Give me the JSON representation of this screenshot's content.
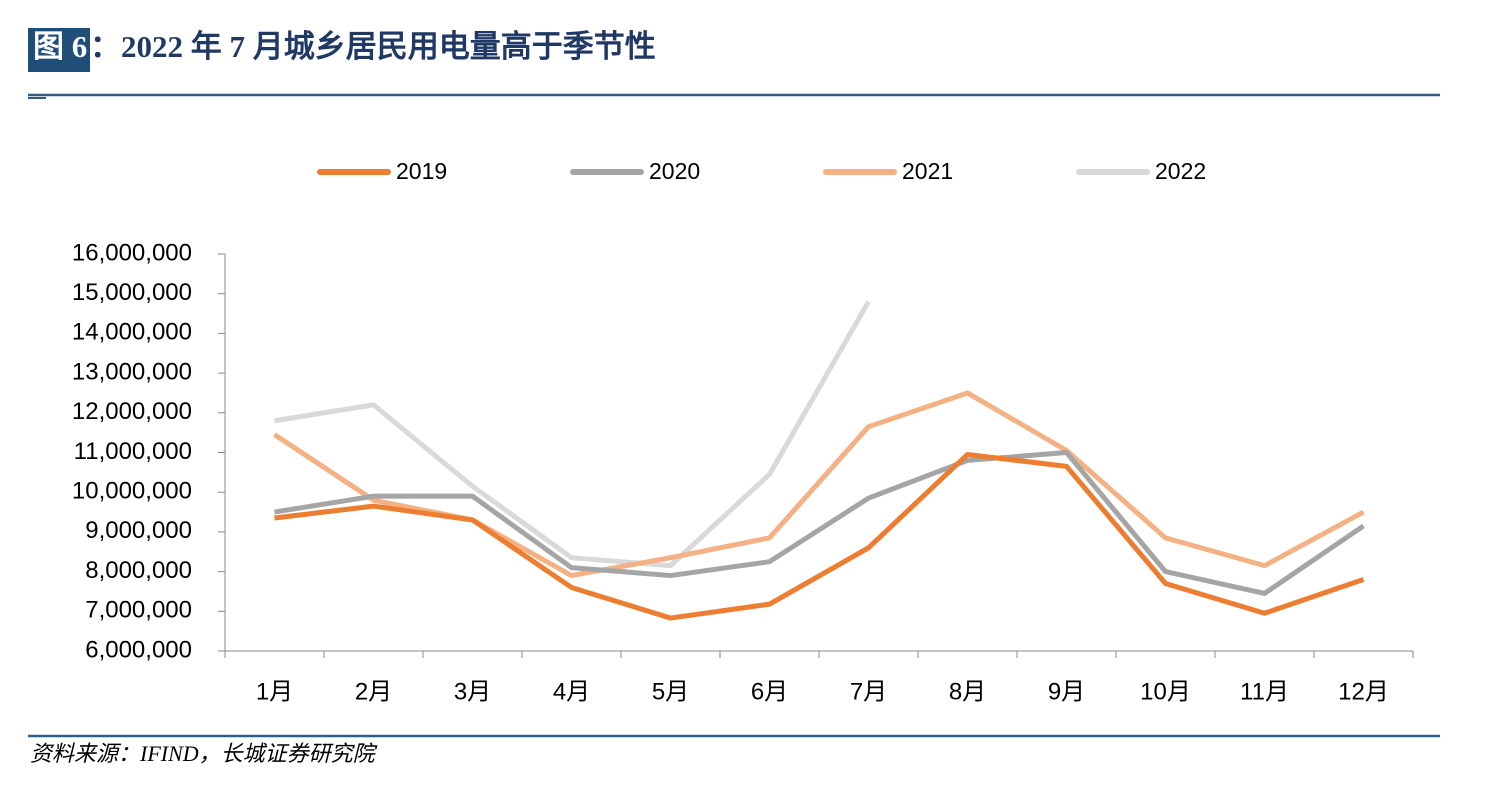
{
  "figure_label": "图 6",
  "source": "资料来源：IFIND，长城证券研究院",
  "chart_data": {
    "type": "line",
    "title": "：2022 年 7 月城乡居民用电量高于季节性",
    "categories": [
      "1月",
      "2月",
      "3月",
      "4月",
      "5月",
      "6月",
      "7月",
      "8月",
      "9月",
      "10月",
      "11月",
      "12月"
    ],
    "series": [
      {
        "name": "2019",
        "color": "#ed7d31",
        "values": [
          9350000,
          9650000,
          9300000,
          7600000,
          6830000,
          7180000,
          8600000,
          10950000,
          10650000,
          7700000,
          6950000,
          7800000
        ]
      },
      {
        "name": "2020",
        "color": "#a5a5a5",
        "values": [
          9500000,
          9900000,
          9900000,
          8100000,
          7900000,
          8250000,
          9850000,
          10800000,
          11000000,
          8000000,
          7450000,
          9150000
        ]
      },
      {
        "name": "2021",
        "color": "#f4b183",
        "values": [
          11450000,
          9800000,
          9300000,
          7900000,
          8350000,
          8850000,
          11650000,
          12500000,
          11050000,
          8850000,
          8150000,
          9500000
        ]
      },
      {
        "name": "2022",
        "color": "#d9d9d9",
        "values": [
          11800000,
          12200000,
          10150000,
          8350000,
          8150000,
          10450000,
          14800000,
          null,
          null,
          null,
          null,
          null
        ]
      }
    ],
    "ylim": [
      6000000,
      16000000
    ],
    "yticks": [
      {
        "value": 6000000,
        "label": "6,000,000"
      },
      {
        "value": 7000000,
        "label": "7,000,000"
      },
      {
        "value": 8000000,
        "label": "8,000,000"
      },
      {
        "value": 9000000,
        "label": "9,000,000"
      },
      {
        "value": 10000000,
        "label": "10,000,000"
      },
      {
        "value": 11000000,
        "label": "11,000,000"
      },
      {
        "value": 12000000,
        "label": "12,000,000"
      },
      {
        "value": 13000000,
        "label": "13,000,000"
      },
      {
        "value": 14000000,
        "label": "14,000,000"
      },
      {
        "value": 15000000,
        "label": "15,000,000"
      },
      {
        "value": 16000000,
        "label": "16,000,000"
      }
    ],
    "grid": false,
    "legend": "top"
  }
}
